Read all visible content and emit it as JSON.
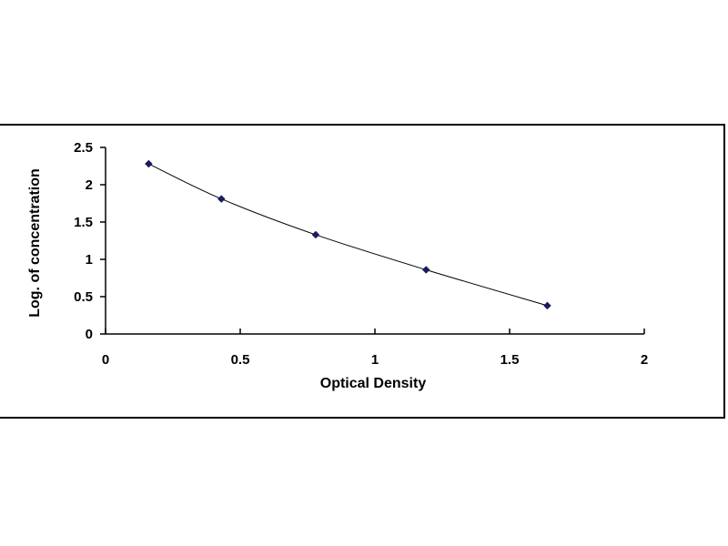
{
  "chart_data": {
    "type": "scatter",
    "title": "",
    "xlabel": "Optical Density",
    "ylabel": "Log. of concentration",
    "xlim": [
      0,
      2
    ],
    "ylim": [
      0,
      2.5
    ],
    "x_ticks": [
      "0",
      "0.5",
      "1",
      "1.5",
      "2"
    ],
    "y_ticks": [
      "0",
      "0.5",
      "1",
      "1.5",
      "2",
      "2.5"
    ],
    "grid": false,
    "legend": "none",
    "trendline": true,
    "marker": "diamond",
    "series": [
      {
        "x": [
          0.16,
          0.43,
          0.78,
          1.19,
          1.64
        ],
        "y": [
          2.28,
          1.81,
          1.33,
          0.86,
          0.38
        ]
      }
    ],
    "colors": {
      "marker": "#1a1a5e",
      "line": "#000000",
      "axis": "#000000"
    }
  }
}
